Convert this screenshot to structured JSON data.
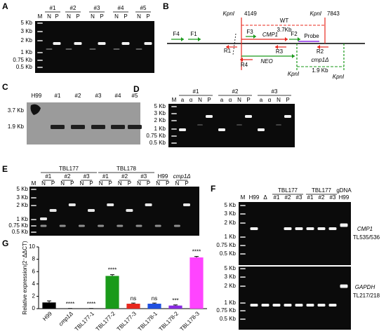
{
  "panels": [
    "A",
    "B",
    "C",
    "D",
    "E",
    "F",
    "G"
  ],
  "A": {
    "groups": [
      "#1",
      "#2",
      "#3",
      "#4",
      "#5"
    ],
    "lane_labels": [
      "M",
      "N",
      "P",
      "N",
      "P",
      "N",
      "P",
      "N",
      "P",
      "N",
      "P"
    ],
    "sizes": [
      "5 Kb",
      "3 Kb",
      "2 Kb",
      "1 Kb",
      "0.75 Kb",
      "0.5 Kb"
    ]
  },
  "B": {
    "kpn_left": "KpnI",
    "pos_left": "4149",
    "kpn_right": "KpnI",
    "pos_right": "7843",
    "wt": "WT",
    "wt_size": "3.7Kb",
    "gene": "CMP1",
    "f4": "F4",
    "f1": "F1",
    "f3": "F3",
    "f2": "F2",
    "probe": "Probe",
    "r1": "R1",
    "r3": "R3",
    "r2": "R2",
    "r4": "R4",
    "neo": "NEO",
    "kpn_mid": "KpnI",
    "mut": "cmp1Δ",
    "mut_size": "1.9 Kb",
    "kpn_end": "KpnI"
  },
  "C": {
    "lanes": [
      "H99",
      "#1",
      "#2",
      "#3",
      "#4",
      "#5"
    ],
    "sizes": [
      "3.7 Kb",
      "1.9 Kb"
    ]
  },
  "D": {
    "groups": [
      "#1",
      "#2",
      "#3"
    ],
    "lane_labels": [
      "M",
      "a",
      "α",
      "N",
      "P",
      "a",
      "α",
      "N",
      "P",
      "a",
      "α",
      "N",
      "P"
    ],
    "sizes": [
      "5 Kb",
      "3 Kb",
      "2 Kb",
      "1 Kb",
      "0.75 Kb",
      "0.5 Kb"
    ]
  },
  "E": {
    "strains": [
      "TBL177",
      "TBL178"
    ],
    "groups": [
      "#1",
      "#2",
      "#3",
      "#1",
      "#2",
      "#3",
      "H99",
      "cmp1Δ"
    ],
    "lane_labels": [
      "M",
      "N",
      "P",
      "N",
      "P",
      "N",
      "P",
      "N",
      "P",
      "N",
      "P",
      "N",
      "P",
      "N",
      "P",
      "N",
      "P"
    ],
    "sizes": [
      "5 Kb",
      "3 Kb",
      "2 Kb",
      "1 Kb",
      "0.75 Kb",
      "0.5 Kb"
    ]
  },
  "F": {
    "strains": [
      "TBL177",
      "TBL177",
      "gDNA"
    ],
    "lane_labels": [
      "M",
      "H99",
      "Δ",
      "#1",
      "#2",
      "#3",
      "#1",
      "#2",
      "#3",
      "H99"
    ],
    "sizes_top": [
      "5 Kb",
      "3 Kb",
      "2 Kb",
      "1 Kb",
      "0.75 Kb",
      "0.5 Kb"
    ],
    "sizes_bottom": [
      "5 Kb",
      "3 Kb",
      "2 Kb",
      "1 Kb",
      "0.75 Kb",
      "0.5 Kb"
    ],
    "genes": [
      {
        "name": "CMP1",
        "primers": "TL535/536"
      },
      {
        "name": "GAPDH",
        "primers": "TL217/218"
      }
    ]
  },
  "chart_data": {
    "type": "bar",
    "y_label": "Relative expression(2⁻ΔΔCT)",
    "categories": [
      "H99",
      "cmp1Δ",
      "TBL177-1",
      "TBL177-2",
      "TBL177-3",
      "TBL178-1",
      "TBL178-2",
      "TBL178-3"
    ],
    "values": [
      1,
      0.02,
      0.02,
      5.3,
      0.8,
      0.8,
      0.5,
      8.3
    ],
    "errors": [
      0.25,
      0.01,
      0.01,
      0.2,
      0.1,
      0.1,
      0.1,
      0.15
    ],
    "colors": [
      "#000000",
      "#000000",
      "#000000",
      "#1a9a1a",
      "#e8281e",
      "#1f4fe0",
      "#8a2be2",
      "#ff44ff"
    ],
    "annotations": [
      null,
      "****",
      "****",
      "****",
      "ns",
      "ns",
      "***",
      "****"
    ],
    "ylim": [
      0,
      10
    ],
    "yticks": [
      0,
      2,
      4,
      6,
      8,
      10
    ]
  }
}
